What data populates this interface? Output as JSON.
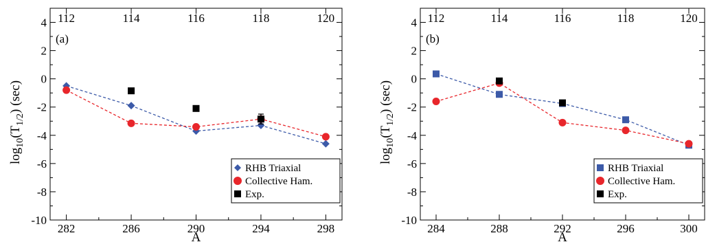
{
  "chart_data": [
    {
      "type": "line",
      "panel_label": "(a)",
      "xlabel": "A",
      "ylabel": "log10(T1/2) (sec)",
      "ylabel_parts": {
        "base": "log",
        "base_sub": "10",
        "open": "(T",
        "t_sub": "1/2",
        "close": ") (sec)"
      },
      "xlim": [
        281,
        299
      ],
      "ylim": [
        -10,
        5
      ],
      "x_ticks": [
        282,
        286,
        290,
        294,
        298
      ],
      "y_ticks": [
        4,
        2,
        0,
        -2,
        -4,
        -6,
        -8,
        -10
      ],
      "top_axis_ticks": [
        {
          "x": 282,
          "label": "112"
        },
        {
          "x": 286,
          "label": "114"
        },
        {
          "x": 290,
          "label": "116"
        },
        {
          "x": 294,
          "label": "118"
        },
        {
          "x": 298,
          "label": "120"
        }
      ],
      "grid": false,
      "legend_position": "bottom-right",
      "series": [
        {
          "name": "RHB Triaxial",
          "marker": "diamond",
          "color": "#3c5aa8",
          "line": "dashed",
          "x": [
            282,
            286,
            290,
            294,
            298
          ],
          "y": [
            -0.5,
            -1.9,
            -3.7,
            -3.3,
            -4.6
          ]
        },
        {
          "name": "Collective Ham.",
          "marker": "circle",
          "color": "#e8262b",
          "line": "dashed",
          "x": [
            282,
            286,
            290,
            294,
            298
          ],
          "y": [
            -0.8,
            -3.15,
            -3.4,
            -2.85,
            -4.1
          ]
        },
        {
          "name": "Exp.",
          "marker": "square",
          "color": "#000000",
          "line": "none",
          "x": [
            286,
            290,
            294
          ],
          "y": [
            -0.85,
            -2.1,
            -2.85
          ],
          "yerr": [
            0,
            0,
            0.35
          ]
        }
      ]
    },
    {
      "type": "line",
      "panel_label": "(b)",
      "xlabel": "A",
      "ylabel": "log10(T1/2) (sec)",
      "ylabel_parts": {
        "base": "log",
        "base_sub": "10",
        "open": "(T",
        "t_sub": "1/2",
        "close": ") (sec)"
      },
      "xlim": [
        283,
        301
      ],
      "ylim": [
        -10,
        5
      ],
      "x_ticks": [
        284,
        288,
        292,
        296,
        300
      ],
      "y_ticks": [
        4,
        2,
        0,
        -2,
        -4,
        -6,
        -8,
        -10
      ],
      "top_axis_ticks": [
        {
          "x": 284,
          "label": "112"
        },
        {
          "x": 288,
          "label": "114"
        },
        {
          "x": 292,
          "label": "116"
        },
        {
          "x": 296,
          "label": "118"
        },
        {
          "x": 300,
          "label": "120"
        }
      ],
      "grid": false,
      "legend_position": "bottom-right",
      "series": [
        {
          "name": "RHB Triaxial",
          "marker": "square",
          "color": "#3c5aa8",
          "line": "dashed",
          "x": [
            284,
            288,
            292,
            296,
            300
          ],
          "y": [
            0.35,
            -1.1,
            -1.75,
            -2.9,
            -4.7
          ]
        },
        {
          "name": "Collective Ham.",
          "marker": "circle",
          "color": "#e8262b",
          "line": "dashed",
          "x": [
            284,
            288,
            292,
            296,
            300
          ],
          "y": [
            -1.6,
            -0.3,
            -3.1,
            -3.65,
            -4.6
          ]
        },
        {
          "name": "Exp.",
          "marker": "square",
          "color": "#000000",
          "line": "none",
          "x": [
            288,
            292
          ],
          "y": [
            -0.15,
            -1.7
          ]
        }
      ]
    }
  ]
}
